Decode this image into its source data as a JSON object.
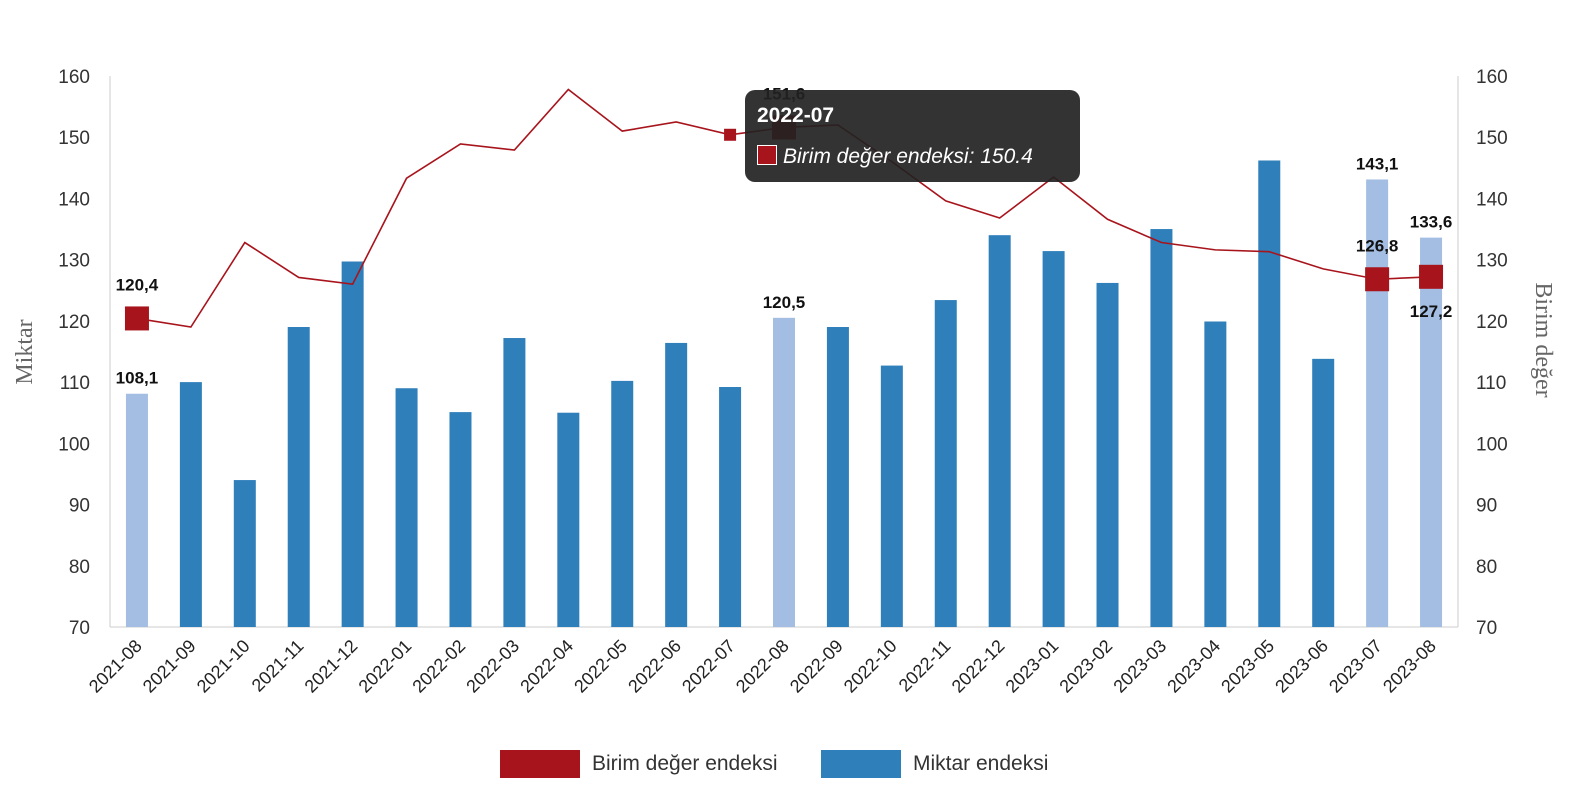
{
  "colors": {
    "bar": "#2f7fbb",
    "bar_highlight": "#a4bee3",
    "line": "#a8141c",
    "axis": "#cccccc"
  },
  "chart_data": {
    "type": "bar",
    "categories": [
      "2021-08",
      "2021-09",
      "2021-10",
      "2021-11",
      "2021-12",
      "2022-01",
      "2022-02",
      "2022-03",
      "2022-04",
      "2022-05",
      "2022-06",
      "2022-07",
      "2022-08",
      "2022-09",
      "2022-10",
      "2022-11",
      "2022-12",
      "2023-01",
      "2023-02",
      "2023-03",
      "2023-04",
      "2023-05",
      "2023-06",
      "2023-07",
      "2023-08"
    ],
    "ylabel": "Miktar",
    "y2label": "Birim değer",
    "ylim": [
      70,
      160
    ],
    "y2lim": [
      70,
      160
    ],
    "yticks": [
      "70",
      "80",
      "90",
      "100",
      "110",
      "120",
      "130",
      "140",
      "150",
      "160"
    ],
    "series": [
      {
        "name": "Miktar endeksi",
        "type": "bar",
        "axis": "left",
        "values": [
          108.1,
          110,
          94,
          119,
          129.7,
          109,
          105.1,
          117.2,
          105,
          110.2,
          116.4,
          109.2,
          120.5,
          119,
          112.7,
          123.4,
          134,
          131.4,
          126.2,
          135,
          119.9,
          146.2,
          113.8,
          143.1,
          133.6
        ],
        "highlighted_indices": [
          0,
          12,
          23,
          24
        ]
      },
      {
        "name": "Birim değer endeksi",
        "type": "line",
        "axis": "right",
        "values": [
          120.4,
          119,
          132.8,
          127.1,
          126,
          143.3,
          148.9,
          147.9,
          157.8,
          151,
          152.5,
          150.4,
          151.6,
          152,
          146,
          139.6,
          136.8,
          143.5,
          136.6,
          132.8,
          131.6,
          131.3,
          128.5,
          126.8,
          127.2
        ],
        "marked_indices": [
          0,
          11,
          12,
          23,
          24
        ]
      }
    ],
    "data_labels": [
      {
        "series": 0,
        "index": 0,
        "text": "108,1"
      },
      {
        "series": 0,
        "index": 12,
        "text": "120,5"
      },
      {
        "series": 0,
        "index": 23,
        "text": "143,1"
      },
      {
        "series": 0,
        "index": 24,
        "text": "133,6"
      },
      {
        "series": 1,
        "index": 0,
        "text": "120,4"
      },
      {
        "series": 1,
        "index": 12,
        "text": "151,6"
      },
      {
        "series": 1,
        "index": 23,
        "text": "126,8"
      },
      {
        "series": 1,
        "index": 24,
        "text": "127,2"
      }
    ],
    "legend_position": "bottom-center"
  },
  "tooltip": {
    "title": "2022-07",
    "text": "Birim değer endeksi: 150.4"
  },
  "legend": [
    {
      "label": "Birim değer endeksi"
    },
    {
      "label": "Miktar endeksi"
    }
  ]
}
